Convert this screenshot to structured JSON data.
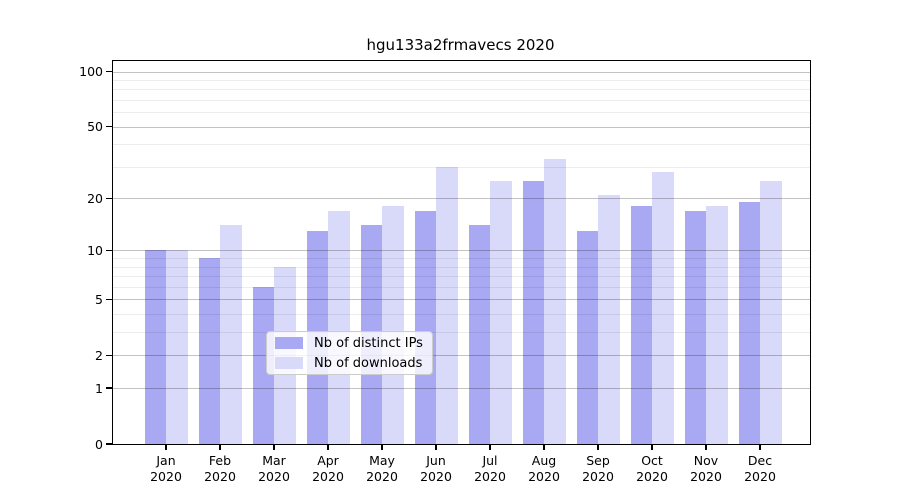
{
  "chart_data": {
    "type": "bar",
    "title": "hgu133a2frmavecs 2020",
    "categories": [
      "Jan",
      "Feb",
      "Mar",
      "Apr",
      "May",
      "Jun",
      "Jul",
      "Aug",
      "Sep",
      "Oct",
      "Nov",
      "Dec"
    ],
    "x_year": "2020",
    "series": [
      {
        "name": "Nb of distinct IPs",
        "color": "#a8a8f3",
        "values": [
          10,
          9,
          6,
          13,
          14,
          17,
          14,
          25,
          13,
          18,
          17,
          19
        ]
      },
      {
        "name": "Nb of downloads",
        "color": "#d9d9fa",
        "values": [
          10,
          14,
          8,
          17,
          18,
          30,
          25,
          33,
          21,
          28,
          18,
          25
        ]
      }
    ],
    "yscale": "log1p",
    "ylim": [
      0,
      114
    ],
    "y_ticks": [
      0,
      1,
      2,
      5,
      10,
      20,
      50,
      100
    ],
    "y_minor_gridlines": [
      3,
      4,
      6,
      7,
      8,
      9,
      30,
      40,
      60,
      70,
      80,
      90
    ],
    "grid": true,
    "legend_position": "lower center inside",
    "xlabel": "",
    "ylabel": ""
  }
}
